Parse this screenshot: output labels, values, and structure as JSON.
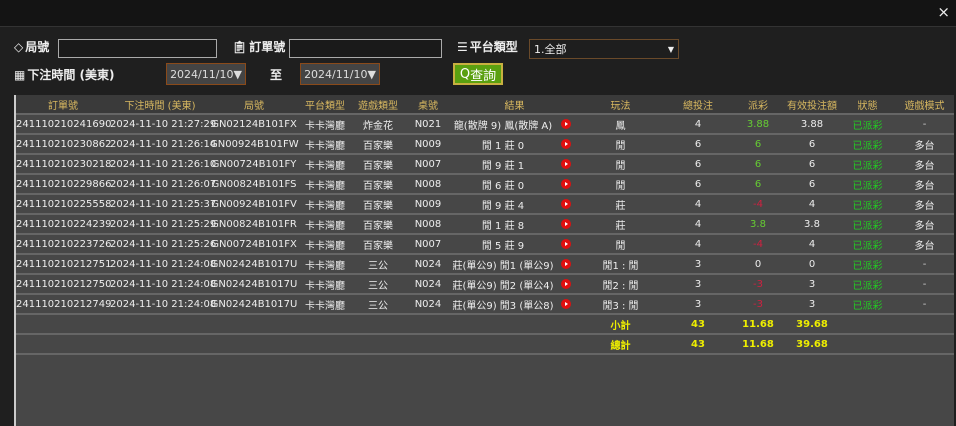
{
  "window": {
    "close_icon": "×"
  },
  "filters": {
    "round_label": "局號",
    "round_value": "",
    "order_label": "訂單號",
    "order_value": "",
    "platform_label": "平台類型",
    "platform_value": "1.全部",
    "time_label": "下注時間 (美東)",
    "date_from": "2024/11/10▼",
    "to_label": "至",
    "date_to": "2024/11/10▼",
    "query_label": "查詢"
  },
  "table": {
    "headers": [
      "訂單號",
      "下注時間 (美東)",
      "局號",
      "平台類型",
      "遊戲類型",
      "桌號",
      "結果",
      "玩法",
      "總投注",
      "派彩",
      "有效投注額",
      "狀態",
      "遊戲模式"
    ],
    "rows": [
      {
        "order": "241110210241690",
        "time": "2024-11-10 21:27:29",
        "round": "GN02124B101FX",
        "platform": "卡卡灣廳",
        "game": "炸金花",
        "table": "N021",
        "result": "龍(散牌 9) 鳳(散牌 A)",
        "play": "鳳",
        "bet": "4",
        "payout": "3.88",
        "payout_color": "green",
        "valid": "3.88",
        "status": "已派彩",
        "mode": "-"
      },
      {
        "order": "241110210230862",
        "time": "2024-11-10 21:26:14",
        "round": "GN00924B101FW",
        "platform": "卡卡灣廳",
        "game": "百家樂",
        "table": "N009",
        "result": "閒 1 莊 0",
        "play": "閒",
        "bet": "6",
        "payout": "6",
        "payout_color": "green",
        "valid": "6",
        "status": "已派彩",
        "mode": "多台"
      },
      {
        "order": "241110210230218",
        "time": "2024-11-10 21:26:10",
        "round": "GN00724B101FY",
        "platform": "卡卡灣廳",
        "game": "百家樂",
        "table": "N007",
        "result": "閒 9 莊 1",
        "play": "閒",
        "bet": "6",
        "payout": "6",
        "payout_color": "green",
        "valid": "6",
        "status": "已派彩",
        "mode": "多台"
      },
      {
        "order": "241110210229866",
        "time": "2024-11-10 21:26:07",
        "round": "GN00824B101FS",
        "platform": "卡卡灣廳",
        "game": "百家樂",
        "table": "N008",
        "result": "閒 6 莊 0",
        "play": "閒",
        "bet": "6",
        "payout": "6",
        "payout_color": "green",
        "valid": "6",
        "status": "已派彩",
        "mode": "多台"
      },
      {
        "order": "241110210225558",
        "time": "2024-11-10 21:25:37",
        "round": "GN00924B101FV",
        "platform": "卡卡灣廳",
        "game": "百家樂",
        "table": "N009",
        "result": "閒 9 莊 4",
        "play": "莊",
        "bet": "4",
        "payout": "-4",
        "payout_color": "red",
        "valid": "4",
        "status": "已派彩",
        "mode": "多台"
      },
      {
        "order": "241110210224239",
        "time": "2024-11-10 21:25:29",
        "round": "GN00824B101FR",
        "platform": "卡卡灣廳",
        "game": "百家樂",
        "table": "N008",
        "result": "閒 1 莊 8",
        "play": "莊",
        "bet": "4",
        "payout": "3.8",
        "payout_color": "green",
        "valid": "3.8",
        "status": "已派彩",
        "mode": "多台"
      },
      {
        "order": "241110210223726",
        "time": "2024-11-10 21:25:26",
        "round": "GN00724B101FX",
        "platform": "卡卡灣廳",
        "game": "百家樂",
        "table": "N007",
        "result": "閒 5 莊 9",
        "play": "閒",
        "bet": "4",
        "payout": "-4",
        "payout_color": "red",
        "valid": "4",
        "status": "已派彩",
        "mode": "多台"
      },
      {
        "order": "241110210212751",
        "time": "2024-11-10 21:24:08",
        "round": "GN02424B1017U",
        "platform": "卡卡灣廳",
        "game": "三公",
        "table": "N024",
        "result": "莊(單公9) 閒1 (單公9)",
        "play": "閒1 : 閒",
        "bet": "3",
        "payout": "0",
        "payout_color": "white",
        "valid": "0",
        "status": "已派彩",
        "mode": "-"
      },
      {
        "order": "241110210212750",
        "time": "2024-11-10 21:24:08",
        "round": "GN02424B1017U",
        "platform": "卡卡灣廳",
        "game": "三公",
        "table": "N024",
        "result": "莊(單公9) 閒2 (單公4)",
        "play": "閒2 : 閒",
        "bet": "3",
        "payout": "-3",
        "payout_color": "red",
        "valid": "3",
        "status": "已派彩",
        "mode": "-"
      },
      {
        "order": "241110210212749",
        "time": "2024-11-10 21:24:08",
        "round": "GN02424B1017U",
        "platform": "卡卡灣廳",
        "game": "三公",
        "table": "N024",
        "result": "莊(單公9) 閒3 (單公8)",
        "play": "閒3 : 閒",
        "bet": "3",
        "payout": "-3",
        "payout_color": "red",
        "valid": "3",
        "status": "已派彩",
        "mode": "-"
      }
    ],
    "subtotal": {
      "label": "小計",
      "bet": "43",
      "payout": "11.68",
      "valid": "39.68"
    },
    "total": {
      "label": "總計",
      "bet": "43",
      "payout": "11.68",
      "valid": "39.68"
    }
  },
  "colors": {
    "header_text": "#d8b860",
    "green": "#66cc33",
    "red": "#d02040",
    "status": "#22cc22",
    "totals": "#eeee00",
    "query_button": "#5aa010"
  }
}
